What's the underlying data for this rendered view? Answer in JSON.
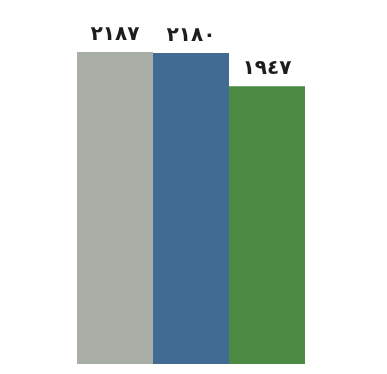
{
  "chart_data": {
    "type": "bar",
    "categories": [
      "",
      "",
      ""
    ],
    "values": [
      2187,
      2180,
      1947
    ],
    "value_labels": [
      "٢١٨٧",
      "٢١٨٠",
      "١٩٤٧"
    ],
    "colors": [
      "#a9aea6",
      "#416b93",
      "#4a8a42"
    ],
    "title": "",
    "xlabel": "",
    "ylabel": "",
    "ylim": [
      0,
      2187
    ],
    "grid": false,
    "legend": "none"
  }
}
